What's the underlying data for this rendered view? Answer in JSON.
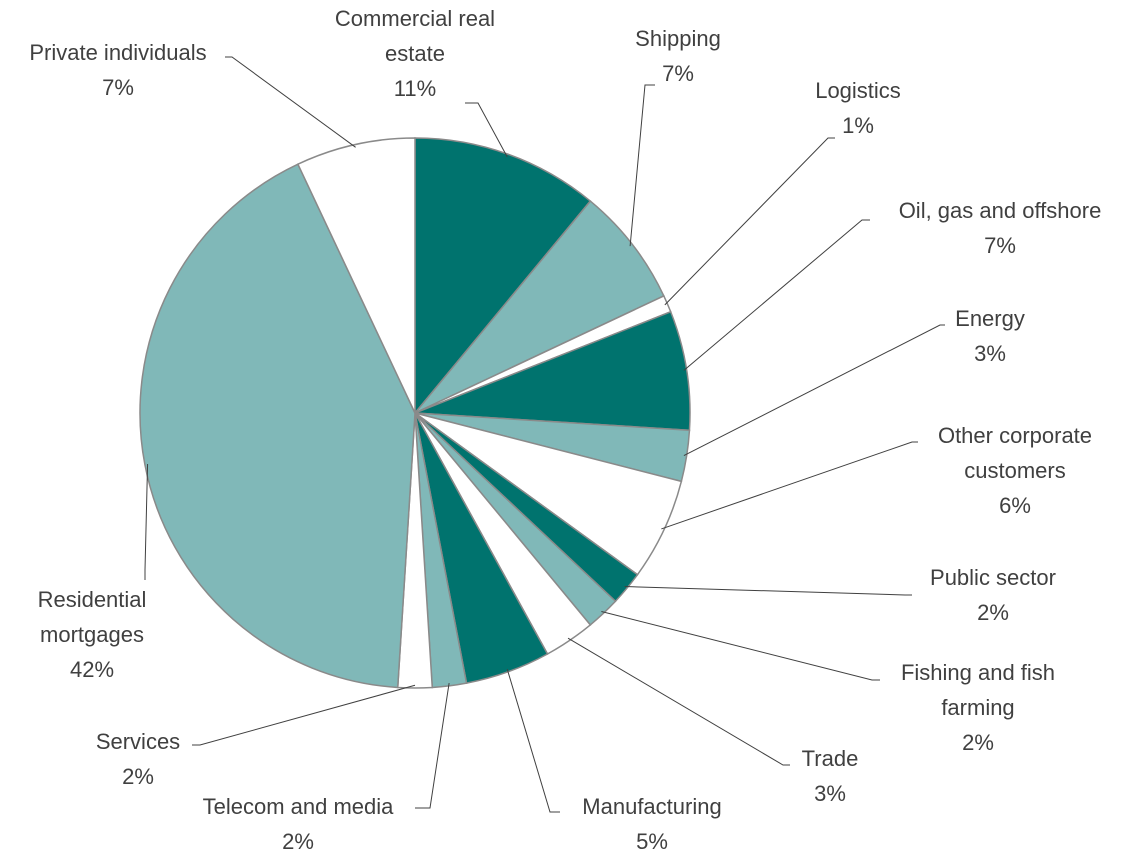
{
  "chart_data": {
    "type": "pie",
    "categories": [
      "Commercial real estate",
      "Shipping",
      "Logistics",
      "Oil, gas and offshore",
      "Energy",
      "Other corporate customers",
      "Public sector",
      "Fishing and fish farming",
      "Trade",
      "Manufacturing",
      "Telecom and media",
      "Services",
      "Residential mortgages",
      "Private individuals"
    ],
    "values": [
      11,
      7,
      1,
      7,
      3,
      6,
      2,
      2,
      3,
      5,
      2,
      2,
      42,
      7
    ],
    "value_labels": [
      "11%",
      "7%",
      "1%",
      "7%",
      "3%",
      "6%",
      "2%",
      "2%",
      "3%",
      "5%",
      "2%",
      "2%",
      "42%",
      "7%"
    ],
    "colors": [
      "#00736e",
      "#80b8b8",
      "#ffffff",
      "#00736e",
      "#80b8b8",
      "#ffffff",
      "#00736e",
      "#80b8b8",
      "#ffffff",
      "#00736e",
      "#80b8b8",
      "#ffffff",
      "#80b8b8",
      "#ffffff"
    ]
  }
}
